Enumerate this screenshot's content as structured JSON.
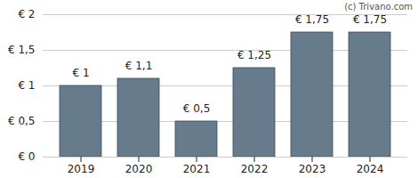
{
  "chart_data": {
    "type": "bar",
    "categories": [
      "2019",
      "2020",
      "2021",
      "2022",
      "2023",
      "2024"
    ],
    "values": [
      1,
      1.1,
      0.5,
      1.25,
      1.75,
      1.75
    ],
    "value_labels": [
      "€ 1",
      "€ 1,1",
      "€ 0,5",
      "€ 1,25",
      "€ 1,75",
      "€ 1,75"
    ],
    "data_labels": true,
    "color": "#667b8c",
    "ylim": [
      0,
      2
    ],
    "yticks": [
      {
        "value": 0,
        "label": "€ 0"
      },
      {
        "value": 0.5,
        "label": "€ 0,5"
      },
      {
        "value": 1,
        "label": "€ 1"
      },
      {
        "value": 1.5,
        "label": "€ 1,5"
      },
      {
        "value": 2,
        "label": "€ 2"
      }
    ],
    "grid": true,
    "annotations": [
      "(c) Trivano.com"
    ]
  }
}
